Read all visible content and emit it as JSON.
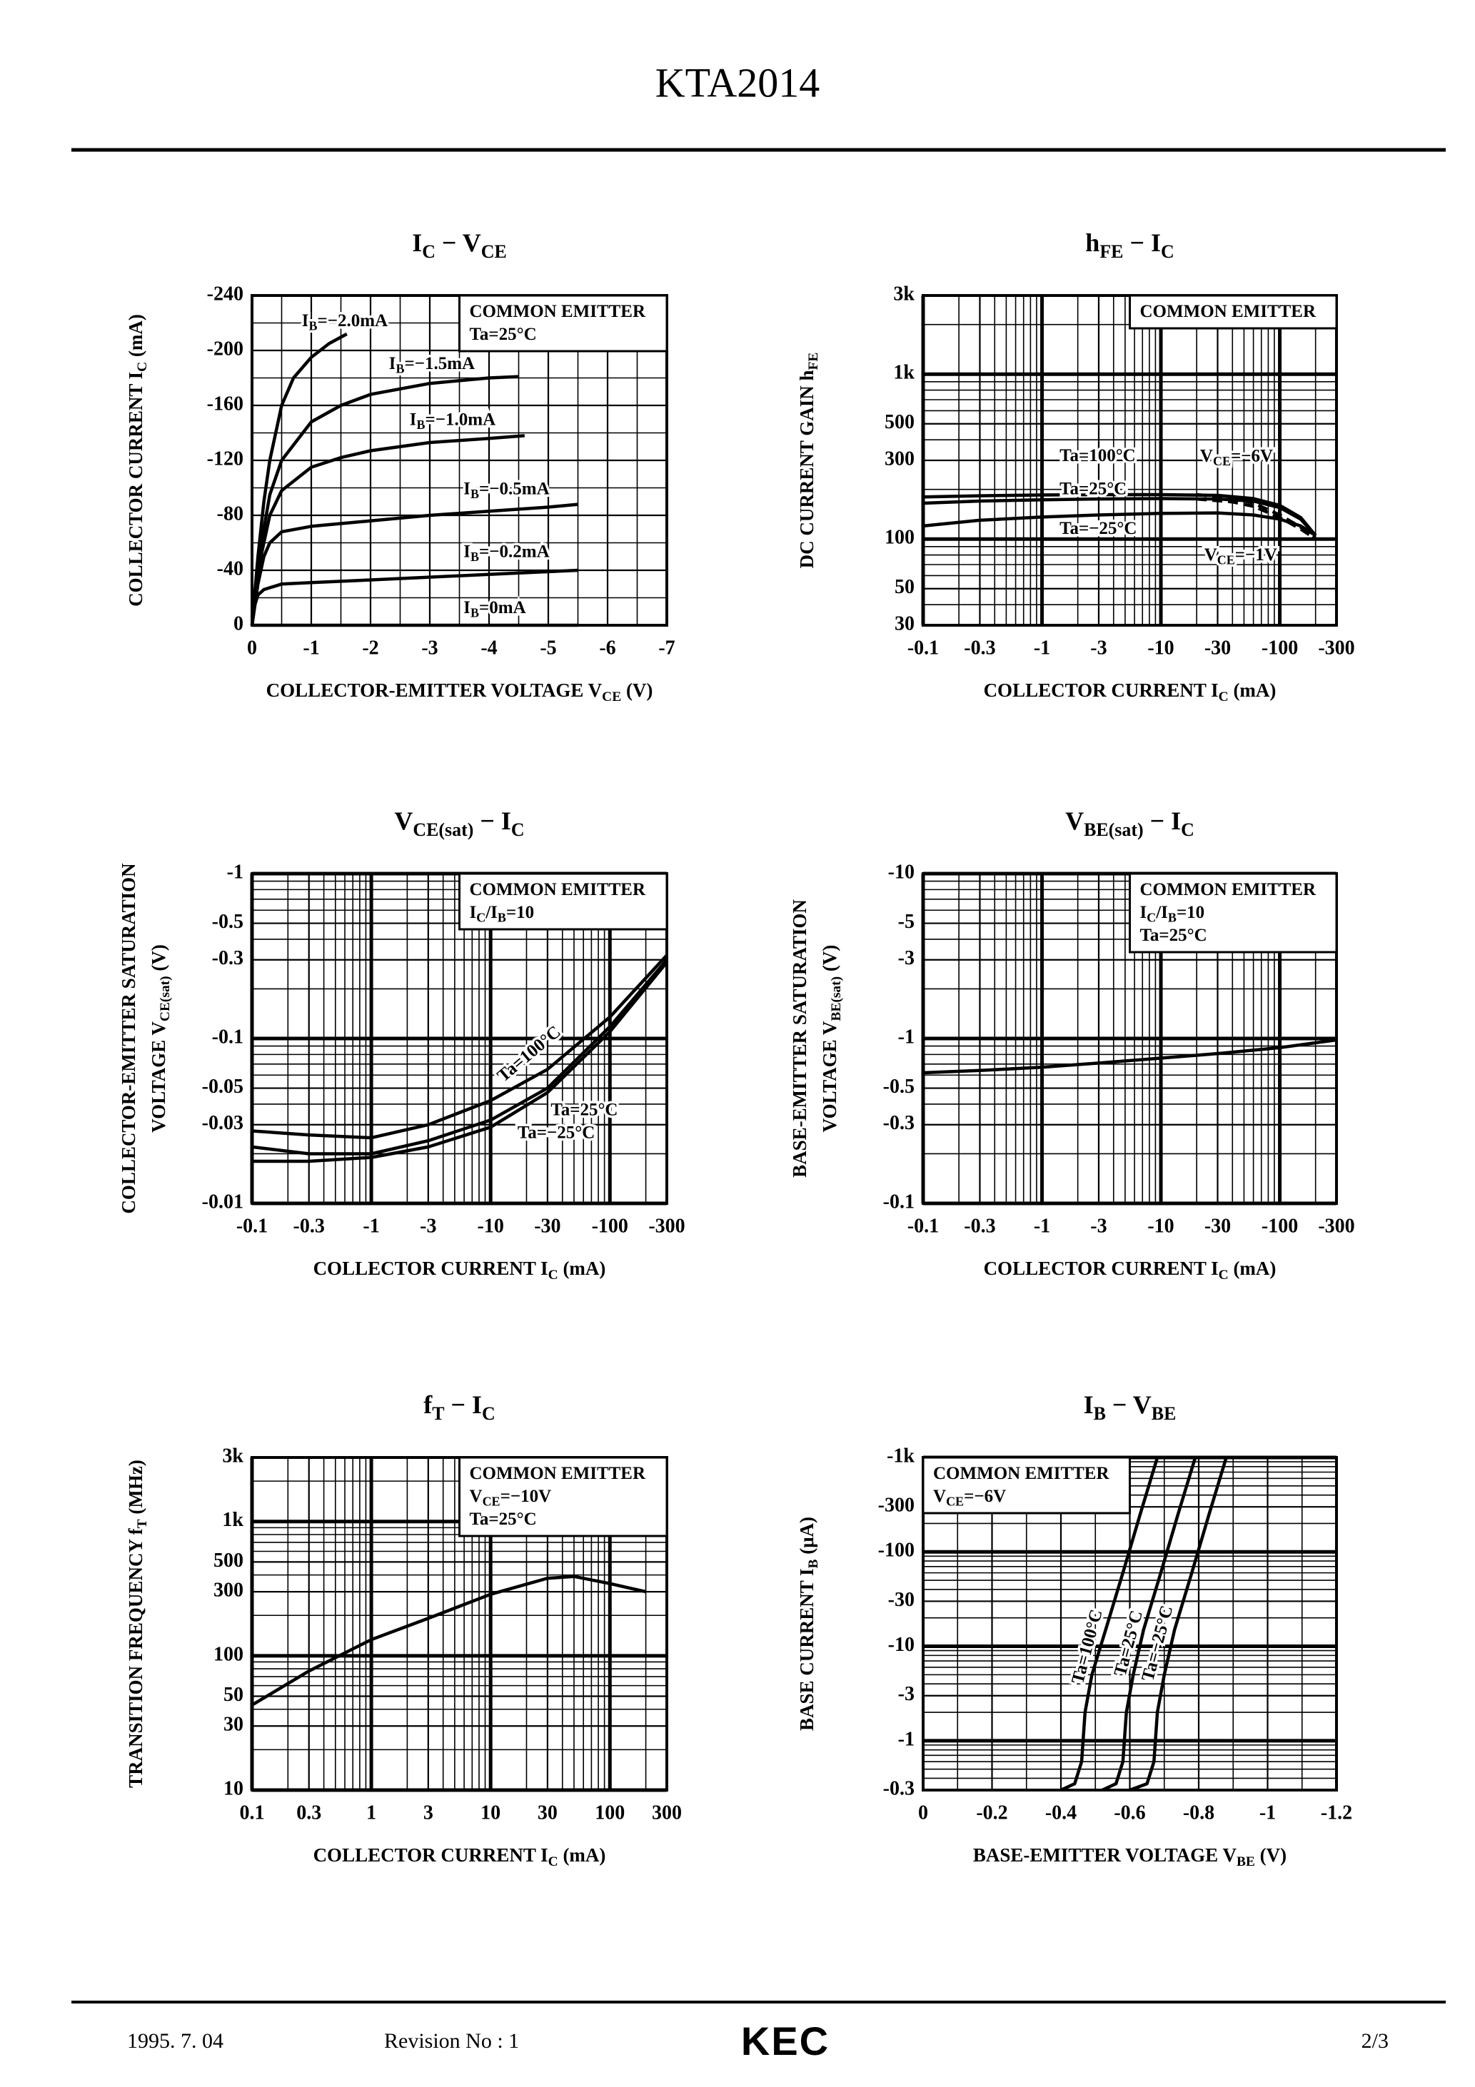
{
  "header": {
    "title": "KTA2014"
  },
  "footer": {
    "date": "1995. 7. 04",
    "revision": "Revision No : 1",
    "logo": "KEC",
    "page": "2/3"
  },
  "chart_data": [
    {
      "type": "line",
      "title": [
        {
          "text": "I"
        },
        {
          "text": "C",
          "sub": true
        },
        {
          "text": "  −  V"
        },
        {
          "text": "CE",
          "sub": true
        }
      ],
      "xlabel": [
        {
          "text": "COLLECTOR-EMITTER VOLTAGE V"
        },
        {
          "text": "CE",
          "sub": true
        },
        {
          "text": "  (V)"
        }
      ],
      "ylabel": [
        [
          {
            "text": "COLLECTOR CURRENT I"
          },
          {
            "text": "C",
            "sub": true
          },
          {
            "text": "  (mA)"
          }
        ]
      ],
      "notes": [
        [
          {
            "text": "COMMON EMITTER"
          }
        ],
        [
          {
            "text": "Ta=25°C"
          }
        ]
      ],
      "notes_corner": "top-right",
      "xscale": "linear",
      "yscale": "linear",
      "grid": true,
      "xlim": [
        0,
        -7
      ],
      "xticks": [
        0,
        -1,
        -2,
        -3,
        -4,
        -5,
        -6,
        -7
      ],
      "ylim": [
        0,
        -240
      ],
      "yticks": [
        0,
        -40,
        -80,
        -120,
        -160,
        -200,
        -240
      ],
      "series": [
        {
          "name": [
            {
              "text": "I"
            },
            {
              "text": "B",
              "sub": true
            },
            {
              "text": "=−2.0mA"
            }
          ],
          "color": "#000000",
          "x": [
            0,
            -0.1,
            -0.2,
            -0.3,
            -0.5,
            -0.7,
            -1.0,
            -1.3,
            -1.6
          ],
          "values": [
            0,
            -50,
            -90,
            -120,
            -160,
            -180,
            -195,
            -205,
            -212
          ]
        },
        {
          "name": [
            {
              "text": "I"
            },
            {
              "text": "B",
              "sub": true
            },
            {
              "text": "=−1.5mA"
            }
          ],
          "color": "#000000",
          "x": [
            0,
            -0.1,
            -0.3,
            -0.5,
            -1,
            -1.5,
            -2,
            -3,
            -4,
            -4.5
          ],
          "values": [
            0,
            -45,
            -95,
            -120,
            -148,
            -160,
            -168,
            -176,
            -180,
            -181
          ]
        },
        {
          "name": [
            {
              "text": "I"
            },
            {
              "text": "B",
              "sub": true
            },
            {
              "text": "=−1.0mA"
            }
          ],
          "color": "#000000",
          "x": [
            0,
            -0.1,
            -0.3,
            -0.5,
            -1,
            -1.5,
            -2,
            -3,
            -4,
            -4.6
          ],
          "values": [
            0,
            -40,
            -80,
            -98,
            -115,
            -122,
            -127,
            -133,
            -136,
            -138
          ]
        },
        {
          "name": [
            {
              "text": "I"
            },
            {
              "text": "B",
              "sub": true
            },
            {
              "text": "=−0.5mA"
            }
          ],
          "color": "#000000",
          "x": [
            0,
            -0.1,
            -0.2,
            -0.3,
            -0.5,
            -1,
            -2,
            -3,
            -4,
            -5,
            -5.5
          ],
          "values": [
            0,
            -30,
            -50,
            -60,
            -68,
            -72,
            -76,
            -80,
            -83,
            -86,
            -88
          ]
        },
        {
          "name": [
            {
              "text": "I"
            },
            {
              "text": "B",
              "sub": true
            },
            {
              "text": "=−0.2mA"
            }
          ],
          "color": "#000000",
          "x": [
            0,
            -0.05,
            -0.1,
            -0.2,
            -0.5,
            -1,
            -2,
            -3,
            -4,
            -5.5
          ],
          "values": [
            0,
            -15,
            -22,
            -26,
            -30,
            -31,
            -33,
            -35,
            -37,
            -40
          ]
        },
        {
          "name": [
            {
              "text": "I"
            },
            {
              "text": "B",
              "sub": true
            },
            {
              "text": "=0mA"
            }
          ],
          "color": "#000000",
          "x": [
            0,
            -5.5
          ],
          "values": [
            0,
            0
          ]
        }
      ]
    },
    {
      "type": "line",
      "title": [
        {
          "text": "h"
        },
        {
          "text": "FE",
          "sub": true
        },
        {
          "text": "  −  I"
        },
        {
          "text": "C",
          "sub": true
        }
      ],
      "xlabel": [
        {
          "text": "COLLECTOR CURRENT I"
        },
        {
          "text": "C",
          "sub": true
        },
        {
          "text": "  (mA)"
        }
      ],
      "ylabel": [
        [
          {
            "text": "DC CURRENT GAIN h"
          },
          {
            "text": "FE",
            "sub": true
          }
        ]
      ],
      "notes": [
        [
          {
            "text": "COMMON EMITTER"
          }
        ]
      ],
      "notes_corner": "top-right",
      "annotations": [
        [
          {
            "text": "V"
          },
          {
            "text": "CE",
            "sub": true
          },
          {
            "text": "=−6V"
          }
        ],
        [
          {
            "text": "V"
          },
          {
            "text": "CE",
            "sub": true
          },
          {
            "text": "=−1V"
          }
        ]
      ],
      "xscale": "log",
      "yscale": "log",
      "grid": true,
      "xlim": [
        -0.1,
        -300
      ],
      "xticks": [
        -0.1,
        -0.3,
        -1,
        -3,
        -10,
        -30,
        -100,
        -300
      ],
      "ylim": [
        30,
        3000
      ],
      "yticks": [
        30,
        50,
        100,
        300,
        500,
        {
          "value": 1000,
          "label": "1k"
        },
        {
          "value": 3000,
          "label": "3k"
        }
      ],
      "series": [
        {
          "name": "Ta=100°C",
          "color": "#000000",
          "x": [
            -0.1,
            -0.3,
            -1,
            -3,
            -10,
            -30,
            -60,
            -100,
            -150,
            -200
          ],
          "values": [
            180,
            183,
            185,
            186,
            186,
            184,
            176,
            160,
            135,
            105
          ]
        },
        {
          "name": "Ta=25°C",
          "color": "#000000",
          "x": [
            -0.1,
            -0.3,
            -1,
            -3,
            -10,
            -30,
            -60,
            -100,
            -150,
            -200
          ],
          "values": [
            165,
            170,
            173,
            175,
            176,
            175,
            170,
            155,
            132,
            105
          ]
        },
        {
          "name": "Ta=−25°C",
          "color": "#000000",
          "x": [
            -0.1,
            -0.3,
            -1,
            -3,
            -10,
            -30,
            -60,
            -100,
            -150,
            -200
          ],
          "values": [
            120,
            130,
            136,
            140,
            143,
            144,
            140,
            132,
            120,
            105
          ]
        },
        {
          "color": "#000000",
          "dash": true,
          "x": [
            -20,
            -40,
            -60,
            -100,
            -150,
            -200
          ],
          "values": [
            186,
            178,
            165,
            140,
            118,
            100
          ]
        },
        {
          "color": "#000000",
          "dash": true,
          "x": [
            -20,
            -40,
            -60,
            -100,
            -150,
            -200
          ],
          "values": [
            175,
            168,
            158,
            135,
            115,
            100
          ]
        }
      ]
    },
    {
      "type": "line",
      "title": [
        {
          "text": "V"
        },
        {
          "text": "CE(sat)",
          "sub": true
        },
        {
          "text": "  −  I"
        },
        {
          "text": "C",
          "sub": true
        }
      ],
      "xlabel": [
        {
          "text": "COLLECTOR CURRENT I"
        },
        {
          "text": "C",
          "sub": true
        },
        {
          "text": "  (mA)"
        }
      ],
      "ylabel": [
        [
          {
            "text": "COLLECTOR-EMITTER SATURATION"
          }
        ],
        [
          {
            "text": "VOLTAGE V"
          },
          {
            "text": "CE(sat)",
            "sub": true
          },
          {
            "text": "  (V)"
          }
        ]
      ],
      "notes": [
        [
          {
            "text": "COMMON EMITTER"
          }
        ],
        [
          {
            "text": "I"
          },
          {
            "text": "C",
            "sub": true
          },
          {
            "text": "/I"
          },
          {
            "text": "B",
            "sub": true
          },
          {
            "text": "=10"
          }
        ]
      ],
      "notes_corner": "top-right",
      "xscale": "log",
      "yscale": "log",
      "grid": true,
      "xlim": [
        -0.1,
        -300
      ],
      "xticks": [
        -0.1,
        -0.3,
        -1,
        -3,
        -10,
        -30,
        -100,
        -300
      ],
      "ylim": [
        -0.01,
        -1
      ],
      "yticks": [
        -0.01,
        -0.03,
        -0.05,
        -0.1,
        -0.3,
        -0.5,
        -1
      ],
      "series": [
        {
          "name": "Ta=100°C",
          "color": "#000000",
          "x": [
            -0.1,
            -0.3,
            -1,
            -3,
            -10,
            -30,
            -100,
            -300
          ],
          "values": [
            -0.0275,
            -0.026,
            -0.025,
            -0.03,
            -0.042,
            -0.065,
            -0.135,
            -0.32
          ]
        },
        {
          "name": "Ta=25°C",
          "color": "#000000",
          "x": [
            -0.1,
            -0.3,
            -1,
            -3,
            -10,
            -30,
            -100,
            -300
          ],
          "values": [
            -0.022,
            -0.02,
            -0.02,
            -0.024,
            -0.032,
            -0.05,
            -0.118,
            -0.3
          ]
        },
        {
          "name": "Ta=−25°C",
          "color": "#000000",
          "x": [
            -0.1,
            -0.3,
            -1,
            -3,
            -10,
            -30,
            -100,
            -300
          ],
          "values": [
            -0.018,
            -0.018,
            -0.019,
            -0.022,
            -0.029,
            -0.047,
            -0.11,
            -0.29
          ]
        }
      ]
    },
    {
      "type": "line",
      "title": [
        {
          "text": "V"
        },
        {
          "text": "BE(sat)",
          "sub": true
        },
        {
          "text": "  −  I"
        },
        {
          "text": "C",
          "sub": true
        }
      ],
      "xlabel": [
        {
          "text": "COLLECTOR CURRENT I"
        },
        {
          "text": "C",
          "sub": true
        },
        {
          "text": "  (mA)"
        }
      ],
      "ylabel": [
        [
          {
            "text": "BASE-EMITTER SATURATION"
          }
        ],
        [
          {
            "text": "VOLTAGE V"
          },
          {
            "text": "BE(sat)",
            "sub": true
          },
          {
            "text": "  (V)"
          }
        ]
      ],
      "notes": [
        [
          {
            "text": "COMMON EMITTER"
          }
        ],
        [
          {
            "text": "I"
          },
          {
            "text": "C",
            "sub": true
          },
          {
            "text": "/I"
          },
          {
            "text": "B",
            "sub": true
          },
          {
            "text": "=10"
          }
        ],
        [
          {
            "text": "Ta=25°C"
          }
        ]
      ],
      "notes_corner": "top-right",
      "xscale": "log",
      "yscale": "log",
      "grid": true,
      "xlim": [
        -0.1,
        -300
      ],
      "xticks": [
        -0.1,
        -0.3,
        -1,
        -3,
        -10,
        -30,
        -100,
        -300
      ],
      "ylim": [
        -0.1,
        -10
      ],
      "yticks": [
        -0.1,
        -0.3,
        -0.5,
        -1,
        -3,
        -5,
        -10
      ],
      "series": [
        {
          "color": "#000000",
          "x": [
            -0.1,
            -0.3,
            -1,
            -3,
            -10,
            -30,
            -100,
            -300
          ],
          "values": [
            -0.62,
            -0.64,
            -0.67,
            -0.71,
            -0.76,
            -0.81,
            -0.88,
            -0.98
          ]
        }
      ]
    },
    {
      "type": "line",
      "title": [
        {
          "text": "f"
        },
        {
          "text": "T",
          "sub": true
        },
        {
          "text": "  −  I"
        },
        {
          "text": "C",
          "sub": true
        }
      ],
      "xlabel": [
        {
          "text": "COLLECTOR CURRENT I"
        },
        {
          "text": "C",
          "sub": true
        },
        {
          "text": "  (mA)"
        }
      ],
      "ylabel": [
        [
          {
            "text": "TRANSITION FREQUENCY f"
          },
          {
            "text": "T",
            "sub": true
          },
          {
            "text": "  (MHz)"
          }
        ]
      ],
      "notes": [
        [
          {
            "text": "COMMON EMITTER"
          }
        ],
        [
          {
            "text": "V"
          },
          {
            "text": "CE",
            "sub": true
          },
          {
            "text": "=−10V"
          }
        ],
        [
          {
            "text": "Ta=25°C"
          }
        ]
      ],
      "notes_corner": "top-right",
      "xscale": "log",
      "yscale": "log",
      "grid": true,
      "xlim": [
        0.1,
        300
      ],
      "xticks": [
        0.1,
        0.3,
        1,
        3,
        10,
        30,
        100,
        300
      ],
      "ylim": [
        10,
        3000
      ],
      "yticks": [
        10,
        30,
        50,
        100,
        300,
        500,
        {
          "value": 1000,
          "label": "1k"
        },
        {
          "value": 3000,
          "label": "3k"
        }
      ],
      "series": [
        {
          "color": "#000000",
          "x": [
            0.1,
            0.3,
            1,
            3,
            10,
            30,
            50,
            100,
            200
          ],
          "values": [
            43,
            77,
            132,
            190,
            287,
            378,
            390,
            345,
            300
          ]
        }
      ]
    },
    {
      "type": "line",
      "title": [
        {
          "text": "I"
        },
        {
          "text": "B",
          "sub": true
        },
        {
          "text": "  −  V"
        },
        {
          "text": "BE",
          "sub": true
        }
      ],
      "xlabel": [
        {
          "text": "BASE-EMITTER VOLTAGE V"
        },
        {
          "text": "BE",
          "sub": true
        },
        {
          "text": "  (V)"
        }
      ],
      "ylabel": [
        [
          {
            "text": "BASE CURRENT I"
          },
          {
            "text": "B",
            "sub": true
          },
          {
            "text": "  (μA)"
          }
        ]
      ],
      "notes": [
        [
          {
            "text": "COMMON EMITTER"
          }
        ],
        [
          {
            "text": "V"
          },
          {
            "text": "CE",
            "sub": true
          },
          {
            "text": "=−6V"
          }
        ]
      ],
      "notes_corner": "top-left",
      "xscale": "linear",
      "yscale": "log",
      "grid": true,
      "xlim": [
        0,
        -1.2
      ],
      "xticks": [
        0,
        -0.2,
        -0.4,
        -0.6,
        -0.8,
        -1.0,
        -1.2
      ],
      "ylim": [
        -0.3,
        -1000
      ],
      "yticks": [
        -0.3,
        -1,
        -3,
        -10,
        -30,
        -100,
        -300,
        {
          "value": -1000,
          "label": "-1k"
        }
      ],
      "series": [
        {
          "name": "Ta=100°C",
          "color": "#000000",
          "x": [
            -0.4,
            -0.44,
            -0.46,
            -0.47,
            -0.49,
            -0.53,
            -0.58,
            -0.63,
            -0.68
          ],
          "values": [
            -0.3,
            -0.35,
            -0.6,
            -2,
            -5,
            -15,
            -60,
            -250,
            -1000
          ]
        },
        {
          "name": "Ta=25°C",
          "color": "#000000",
          "x": [
            -0.52,
            -0.56,
            -0.58,
            -0.59,
            -0.61,
            -0.64,
            -0.69,
            -0.74,
            -0.79
          ],
          "values": [
            -0.3,
            -0.35,
            -0.6,
            -2,
            -5,
            -15,
            -60,
            -250,
            -1000
          ]
        },
        {
          "name": "Ta=−25°C",
          "color": "#000000",
          "x": [
            -0.6,
            -0.65,
            -0.67,
            -0.68,
            -0.7,
            -0.73,
            -0.78,
            -0.83,
            -0.88
          ],
          "values": [
            -0.3,
            -0.35,
            -0.6,
            -2,
            -5,
            -15,
            -60,
            -250,
            -1000
          ]
        }
      ]
    }
  ]
}
